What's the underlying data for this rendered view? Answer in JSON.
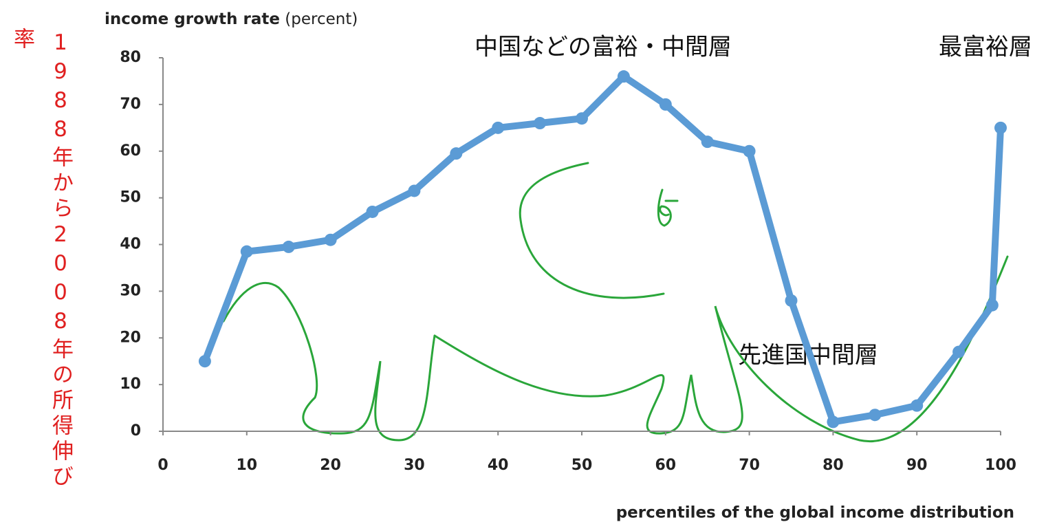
{
  "chart_data": {
    "type": "line",
    "y_label": "income growth rate",
    "y_label_unit": "(percent)",
    "x_label": "percentiles of the global income distribution",
    "x": [
      5,
      10,
      15,
      20,
      25,
      30,
      35,
      40,
      45,
      50,
      55,
      60,
      65,
      70,
      75,
      80,
      85,
      90,
      95,
      99,
      100
    ],
    "values": [
      15,
      38.5,
      39.5,
      41,
      47,
      51.5,
      59.5,
      65,
      66,
      67,
      76,
      70,
      62,
      60,
      28,
      2,
      3.5,
      5.5,
      17,
      27,
      65
    ],
    "color": "#5b9bd5",
    "xlim": [
      0,
      100
    ],
    "xticks": [
      0,
      10,
      20,
      30,
      40,
      50,
      60,
      70,
      80,
      90,
      100
    ],
    "ylim": [
      0,
      80
    ],
    "yticks": [
      0,
      10,
      20,
      30,
      40,
      50,
      60,
      70,
      80
    ],
    "annotations": [
      "中国などの富裕・中間層",
      "最富裕層",
      "先進国中間層"
    ],
    "side_label": "1988年から2008年の所得伸び",
    "side_label_end": "率"
  }
}
